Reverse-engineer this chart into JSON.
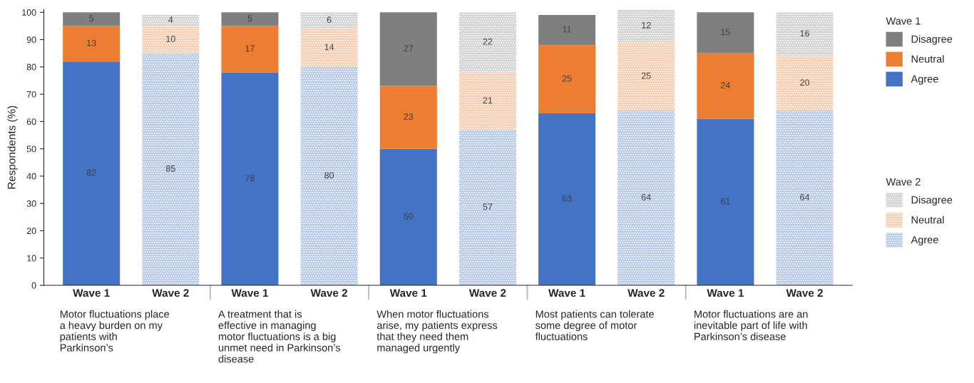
{
  "chart_data": {
    "type": "bar",
    "stacked": true,
    "ylabel": "Respondents (%)",
    "categories": [
      "Wave 1",
      "Wave 2",
      "Wave 1",
      "Wave 2",
      "Wave 1",
      "Wave 2",
      "Wave 1",
      "Wave 2",
      "Wave 1",
      "Wave 2"
    ],
    "series": [
      {
        "name": "Agree",
        "color": "#4472c4",
        "values": [
          82,
          null,
          78,
          null,
          50,
          null,
          63,
          null,
          61,
          null
        ]
      },
      {
        "name": "Neutral",
        "color": "#ed7d31",
        "values": [
          13,
          null,
          17,
          null,
          23,
          null,
          25,
          null,
          24,
          null
        ]
      },
      {
        "name": "Disagree",
        "color": "#7f7f7f",
        "values": [
          5,
          null,
          5,
          null,
          27,
          null,
          11,
          null,
          15,
          null
        ]
      },
      {
        "name": "Agree",
        "color": "#b4c7e7",
        "values": [
          null,
          85,
          null,
          80,
          null,
          57,
          null,
          64,
          null,
          64
        ]
      },
      {
        "name": "Neutral",
        "color": "#f8cbad",
        "values": [
          null,
          10,
          null,
          14,
          null,
          21,
          null,
          25,
          null,
          20
        ]
      },
      {
        "name": "Disagree",
        "color": "#d0d0d0",
        "values": [
          null,
          4,
          null,
          6,
          null,
          22,
          null,
          12,
          null,
          16
        ]
      }
    ],
    "legend_title": [
      "Wave 1",
      "Wave 2"
    ],
    "legend": "right",
    "annotations": [
      "Motor fluctuations place\na heavy burden on my\npatients with\nParkinson’s",
      "A treatment that is\neffective in managing\nmotor fluctuations is a big\nunmet need in Parkinson’s\ndisease",
      "When motor fluctuations\narise, my patients express\nthat they need them\nmanaged urgently",
      "Most patients can tolerate\nsome degree of motor\nfluctuations",
      "Motor fluctuations are an\ninevitable part of life with\nParkinson’s disease"
    ],
    "ylim": [
      0,
      101
    ],
    "yticks": [
      0,
      10,
      20,
      30,
      40,
      50,
      60,
      70,
      80,
      90,
      100
    ],
    "data_labels": true,
    "grid": false
  }
}
